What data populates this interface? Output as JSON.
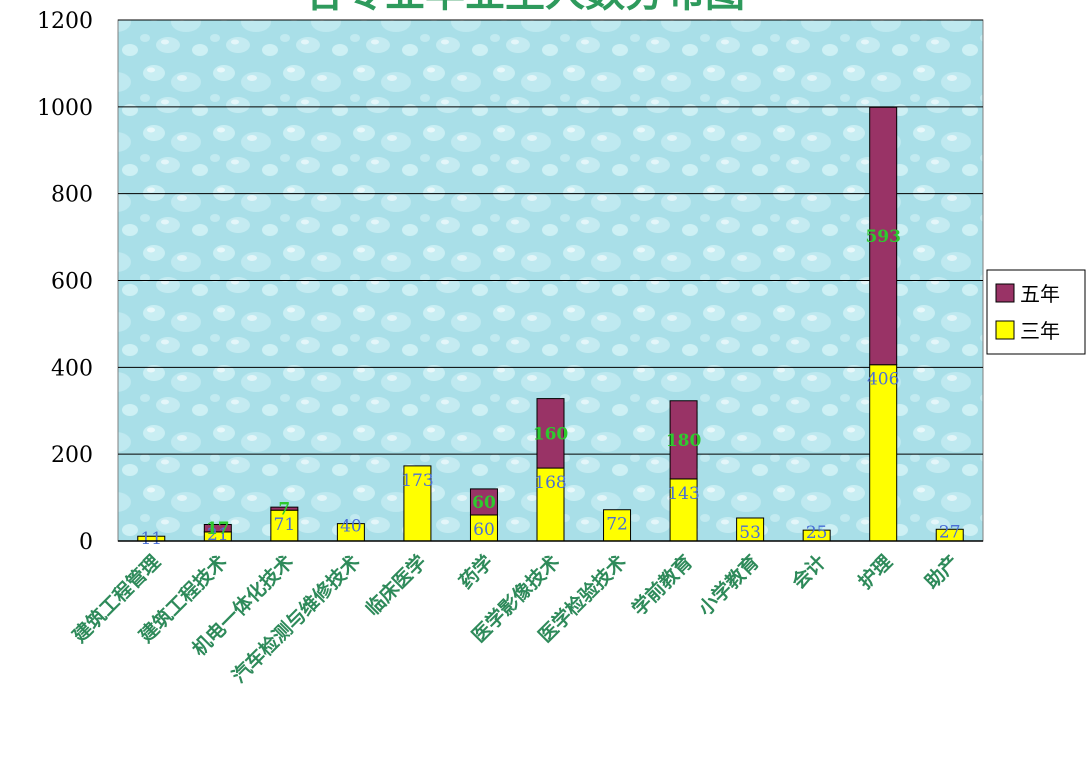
{
  "chart_data": {
    "type": "bar",
    "stacked": true,
    "title": "各专业毕业生人数分布图",
    "categories": [
      "建筑工程管理",
      "建筑工程技术",
      "机电一体化技术",
      "汽车检测与维修技术",
      "临床医学",
      "药学",
      "医学影像技术",
      "医学检验技术",
      "学前教育",
      "小学教育",
      "会计",
      "护理",
      "助产"
    ],
    "series": [
      {
        "name": "三年",
        "color": "#ffff00",
        "values": [
          11,
          21,
          71,
          40,
          173,
          60,
          168,
          72,
          143,
          53,
          25,
          406,
          27
        ]
      },
      {
        "name": "五年",
        "color": "#993366",
        "values": [
          null,
          17,
          7,
          null,
          null,
          60,
          160,
          null,
          180,
          null,
          null,
          593,
          null
        ]
      }
    ],
    "ylim": [
      0,
      1200
    ],
    "yticks": [
      0,
      200,
      400,
      600,
      800,
      1000,
      1200
    ],
    "grid": true,
    "legend": "right",
    "plot_background": "water-drop texture, light cyan"
  }
}
